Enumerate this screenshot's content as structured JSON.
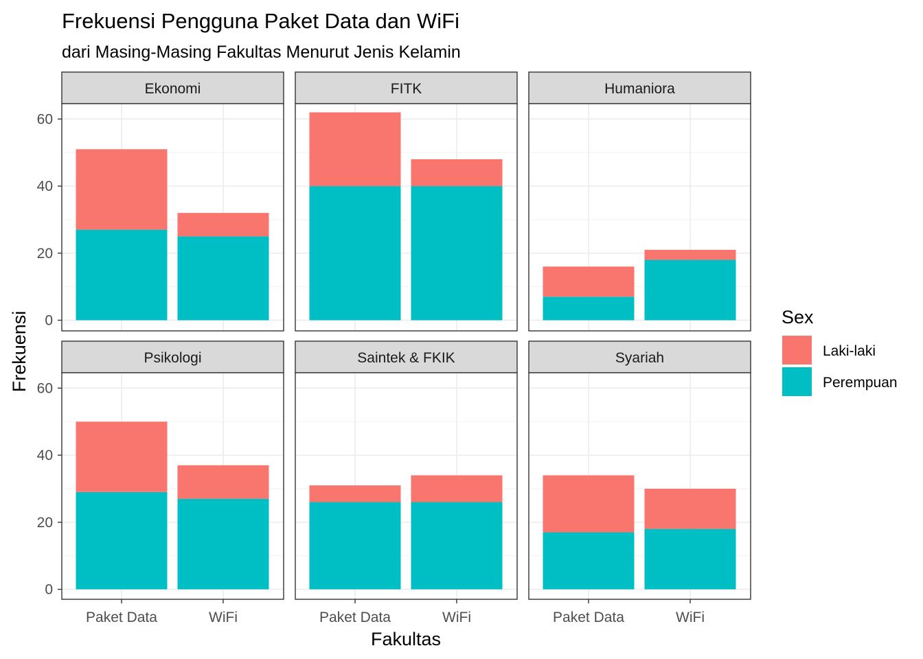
{
  "chart_data": {
    "type": "bar",
    "stacked": true,
    "faceted": true,
    "title": "Frekuensi Pengguna Paket Data dan WiFi",
    "subtitle": "dari Masing-Masing Fakultas Menurut Jenis Kelamin",
    "xlabel": "Fakultas",
    "ylabel": "Frekuensi",
    "ylim": [
      0,
      70
    ],
    "yticks": [
      0,
      20,
      40,
      60
    ],
    "grid": true,
    "legend": {
      "title": "Sex",
      "placement": "right",
      "entries": [
        {
          "name": "Laki-laki",
          "color": "#F8766D"
        },
        {
          "name": "Perempuan",
          "color": "#00BFC4"
        }
      ]
    },
    "categories": [
      "Paket Data",
      "WiFi"
    ],
    "facets": [
      {
        "name": "Ekonomi",
        "series": [
          {
            "name": "Perempuan",
            "values": [
              27,
              25
            ]
          },
          {
            "name": "Laki-laki",
            "values": [
              24,
              7
            ]
          }
        ]
      },
      {
        "name": "FITK",
        "series": [
          {
            "name": "Perempuan",
            "values": [
              40,
              40
            ]
          },
          {
            "name": "Laki-laki",
            "values": [
              22,
              8
            ]
          }
        ]
      },
      {
        "name": "Humaniora",
        "series": [
          {
            "name": "Perempuan",
            "values": [
              7,
              18
            ]
          },
          {
            "name": "Laki-laki",
            "values": [
              9,
              3
            ]
          }
        ]
      },
      {
        "name": "Psikologi",
        "series": [
          {
            "name": "Perempuan",
            "values": [
              29,
              27
            ]
          },
          {
            "name": "Laki-laki",
            "values": [
              21,
              10
            ]
          }
        ]
      },
      {
        "name": "Saintek & FKIK",
        "series": [
          {
            "name": "Perempuan",
            "values": [
              26,
              26
            ]
          },
          {
            "name": "Laki-laki",
            "values": [
              5,
              8
            ]
          }
        ]
      },
      {
        "name": "Syariah",
        "series": [
          {
            "name": "Perempuan",
            "values": [
              17,
              18
            ]
          },
          {
            "name": "Laki-laki",
            "values": [
              17,
              12
            ]
          }
        ]
      }
    ]
  }
}
